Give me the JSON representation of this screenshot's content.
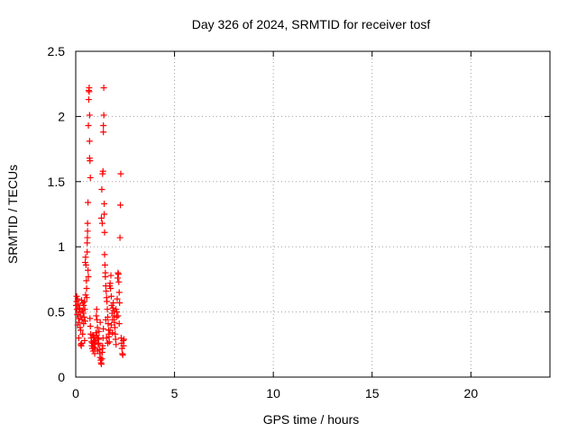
{
  "chart_data": {
    "type": "scatter",
    "title": "Day 326 of 2024, SRMTID for receiver tosf",
    "xlabel": "GPS time / hours",
    "ylabel": "SRMTID / TECUs",
    "xlim": [
      0,
      24
    ],
    "ylim": [
      0,
      2.5
    ],
    "x_ticks": [
      0,
      5,
      10,
      15,
      20
    ],
    "x_tick_labels": [
      "0",
      "5",
      "10",
      "15",
      "20"
    ],
    "y_ticks": [
      0,
      0.5,
      1,
      1.5,
      2,
      2.5
    ],
    "y_tick_labels": [
      "0",
      "0.5",
      "1",
      "1.5",
      "2",
      "2.5"
    ],
    "grid": true,
    "marker": "plus",
    "series": [
      {
        "name": "tosf",
        "color": "#ff0000",
        "points": [
          [
            0.02,
            0.55
          ],
          [
            0.04,
            0.58
          ],
          [
            0.06,
            0.52
          ],
          [
            0.08,
            0.48
          ],
          [
            0.1,
            0.6
          ],
          [
            0.12,
            0.56
          ],
          [
            0.14,
            0.45
          ],
          [
            0.16,
            0.5
          ],
          [
            0.18,
            0.42
          ],
          [
            0.2,
            0.53
          ],
          [
            0.22,
            0.38
          ],
          [
            0.24,
            0.47
          ],
          [
            0.26,
            0.25
          ],
          [
            0.28,
            0.24
          ],
          [
            0.3,
            0.26
          ],
          [
            0.32,
            0.44
          ],
          [
            0.34,
            0.51
          ],
          [
            0.36,
            0.57
          ],
          [
            0.38,
            0.49
          ],
          [
            0.4,
            0.55
          ],
          [
            0.42,
            0.46
          ],
          [
            0.44,
            0.58
          ],
          [
            0.46,
            0.52
          ],
          [
            0.48,
            0.43
          ],
          [
            0.5,
            0.63
          ],
          [
            0.25,
            0.36
          ],
          [
            0.15,
            0.3
          ],
          [
            0.1,
            0.4
          ],
          [
            0.05,
            0.62
          ],
          [
            0.35,
            0.33
          ],
          [
            0.45,
            0.28
          ],
          [
            0.48,
            0.88
          ],
          [
            0.5,
            0.92
          ],
          [
            0.52,
            0.86
          ],
          [
            0.54,
            0.74
          ],
          [
            0.55,
            0.68
          ],
          [
            0.56,
            0.61
          ],
          [
            0.58,
            0.96
          ],
          [
            0.58,
            1.03
          ],
          [
            0.59,
            1.07
          ],
          [
            0.6,
            1.12
          ],
          [
            0.6,
            1.18
          ],
          [
            0.62,
            0.82
          ],
          [
            0.62,
            1.34
          ],
          [
            0.64,
            0.77
          ],
          [
            0.64,
            1.93
          ],
          [
            0.66,
            2.13
          ],
          [
            0.66,
            2.2
          ],
          [
            0.68,
            2.22
          ],
          [
            0.68,
            2.19
          ],
          [
            0.7,
            2.01
          ],
          [
            0.7,
            1.81
          ],
          [
            0.7,
            1.68
          ],
          [
            0.72,
            1.66
          ],
          [
            0.74,
            1.53
          ],
          [
            0.72,
            0.45
          ],
          [
            0.74,
            0.39
          ],
          [
            0.76,
            0.33
          ],
          [
            0.78,
            0.3
          ],
          [
            0.8,
            0.27
          ],
          [
            0.82,
            0.24
          ],
          [
            0.84,
            0.22
          ],
          [
            0.86,
            0.26
          ],
          [
            0.88,
            0.2
          ],
          [
            0.9,
            0.28
          ],
          [
            0.92,
            0.31
          ],
          [
            0.94,
            0.25
          ],
          [
            0.96,
            0.18
          ],
          [
            0.98,
            0.22
          ],
          [
            1.0,
            0.27
          ],
          [
            1.02,
            0.34
          ],
          [
            1.04,
            0.47
          ],
          [
            1.06,
            0.52
          ],
          [
            1.08,
            0.44
          ],
          [
            1.1,
            0.38
          ],
          [
            1.12,
            0.3
          ],
          [
            1.14,
            0.25
          ],
          [
            1.16,
            0.29
          ],
          [
            1.18,
            0.35
          ],
          [
            1.2,
            0.21
          ],
          [
            1.22,
            0.18
          ],
          [
            1.24,
            0.15
          ],
          [
            1.26,
            0.13
          ],
          [
            1.28,
            0.11
          ],
          [
            1.3,
            0.1
          ],
          [
            1.32,
            0.14
          ],
          [
            1.34,
            0.19
          ],
          [
            1.36,
            0.24
          ],
          [
            1.38,
            0.3
          ],
          [
            1.4,
            0.37
          ],
          [
            1.3,
            1.22
          ],
          [
            1.32,
            1.44
          ],
          [
            1.34,
            1.18
          ],
          [
            1.36,
            1.56
          ],
          [
            1.38,
            1.58
          ],
          [
            1.4,
            1.88
          ],
          [
            1.4,
            1.93
          ],
          [
            1.42,
            2.01
          ],
          [
            1.42,
            2.22
          ],
          [
            1.44,
            1.33
          ],
          [
            1.44,
            1.25
          ],
          [
            1.46,
            1.11
          ],
          [
            1.46,
            0.94
          ],
          [
            1.48,
            0.86
          ],
          [
            1.5,
            0.8
          ],
          [
            1.5,
            0.77
          ],
          [
            1.52,
            0.7
          ],
          [
            1.54,
            0.66
          ],
          [
            1.56,
            0.61
          ],
          [
            1.58,
            0.58
          ],
          [
            1.6,
            0.52
          ],
          [
            1.62,
            0.46
          ],
          [
            1.64,
            0.41
          ],
          [
            1.66,
            0.36
          ],
          [
            1.68,
            0.31
          ],
          [
            1.7,
            0.27
          ],
          [
            1.72,
            0.7
          ],
          [
            1.74,
            0.72
          ],
          [
            1.76,
            0.68
          ],
          [
            1.78,
            0.78
          ],
          [
            1.8,
            0.62
          ],
          [
            1.82,
            0.55
          ],
          [
            1.84,
            0.49
          ],
          [
            1.86,
            0.44
          ],
          [
            1.88,
            0.53
          ],
          [
            1.9,
            0.57
          ],
          [
            1.92,
            0.51
          ],
          [
            1.94,
            0.47
          ],
          [
            1.96,
            0.42
          ],
          [
            1.98,
            0.38
          ],
          [
            2.0,
            0.33
          ],
          [
            2.02,
            0.29
          ],
          [
            2.04,
            0.25
          ],
          [
            2.06,
            0.46
          ],
          [
            2.08,
            0.5
          ],
          [
            2.1,
            0.6
          ],
          [
            2.12,
            0.76
          ],
          [
            2.14,
            0.8
          ],
          [
            2.16,
            0.79
          ],
          [
            2.18,
            0.73
          ],
          [
            2.2,
            0.65
          ],
          [
            2.22,
            0.57
          ],
          [
            2.24,
            1.07
          ],
          [
            2.26,
            1.32
          ],
          [
            2.28,
            1.56
          ],
          [
            2.3,
            0.3
          ],
          [
            2.32,
            0.26
          ],
          [
            2.34,
            0.22
          ],
          [
            2.36,
            0.18
          ],
          [
            2.38,
            0.17
          ],
          [
            2.4,
            0.28
          ],
          [
            2.42,
            0.24
          ],
          [
            2.44,
            0.29
          ],
          [
            1.56,
            0.3
          ],
          [
            1.62,
            0.26
          ],
          [
            1.68,
            0.33
          ],
          [
            1.74,
            0.36
          ],
          [
            1.8,
            0.4
          ],
          [
            1.86,
            0.34
          ],
          [
            2.2,
            0.41
          ],
          [
            1.1,
            0.2
          ],
          [
            1.16,
            0.26
          ],
          [
            0.92,
            0.23
          ],
          [
            1.06,
            0.32
          ],
          [
            1.24,
            0.42
          ],
          [
            1.36,
            0.22
          ],
          [
            1.52,
            0.44
          ],
          [
            2.04,
            0.52
          ],
          [
            2.14,
            0.47
          ],
          [
            0.3,
            0.59
          ],
          [
            0.18,
            0.52
          ],
          [
            0.4,
            0.41
          ],
          [
            0.86,
            0.32
          ],
          [
            0.96,
            0.28
          ]
        ]
      }
    ]
  }
}
